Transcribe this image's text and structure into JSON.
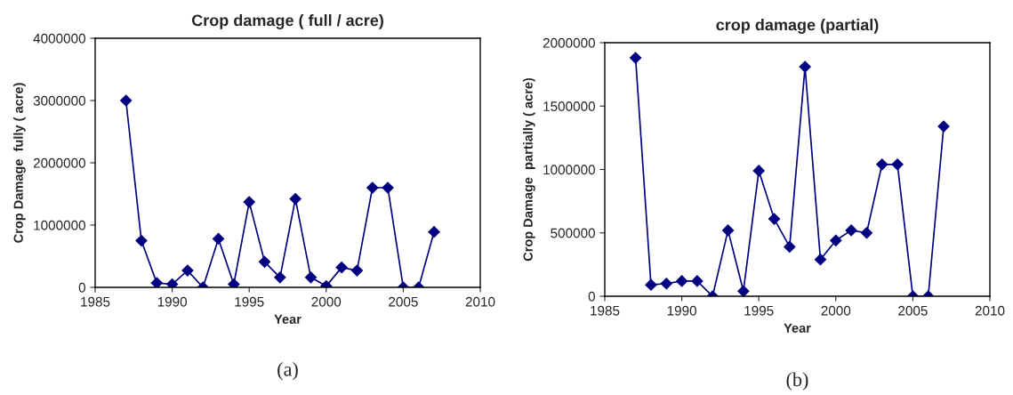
{
  "chart_data": [
    {
      "type": "line",
      "title": "Crop damage ( full / acre)",
      "xlabel": "Year",
      "ylabel": "Crop Damage  fully ( acre)",
      "annotations": [
        "(a)"
      ],
      "x": [
        1987,
        1988,
        1989,
        1990,
        1991,
        1992,
        1993,
        1994,
        1995,
        1996,
        1997,
        1998,
        1999,
        2000,
        2001,
        2002,
        2003,
        2004,
        2005,
        2006,
        2007
      ],
      "series": [
        {
          "color": "#000080",
          "values": [
            3000000,
            750000,
            70000,
            50000,
            270000,
            0,
            780000,
            50000,
            1370000,
            410000,
            160000,
            1420000,
            160000,
            20000,
            320000,
            270000,
            1600000,
            1600000,
            0,
            0,
            890000
          ]
        }
      ],
      "xlim": [
        1985,
        2010
      ],
      "xticks": [
        1985,
        1990,
        1995,
        2000,
        2005,
        2010
      ],
      "ylim": [
        0,
        4000000
      ],
      "yticks": [
        0,
        1000000,
        2000000,
        3000000,
        4000000
      ],
      "marker": "diamond",
      "line_style": "solid",
      "grid": false,
      "legend": false
    },
    {
      "type": "line",
      "title": "crop damage (partial)",
      "xlabel": "Year",
      "ylabel": "Crop Damage  partially ( acre)",
      "annotations": [
        "(b)"
      ],
      "x": [
        1987,
        1988,
        1989,
        1990,
        1991,
        1992,
        1993,
        1994,
        1995,
        1996,
        1997,
        1998,
        1999,
        2000,
        2001,
        2002,
        2003,
        2004,
        2005,
        2006,
        2007
      ],
      "series": [
        {
          "color": "#000080",
          "values": [
            1880000,
            90000,
            100000,
            120000,
            120000,
            0,
            520000,
            40000,
            990000,
            610000,
            390000,
            1810000,
            290000,
            440000,
            520000,
            500000,
            1040000,
            1040000,
            0,
            0,
            1340000
          ]
        }
      ],
      "xlim": [
        1985,
        2010
      ],
      "xticks": [
        1985,
        1990,
        1995,
        2000,
        2005,
        2010
      ],
      "ylim": [
        0,
        2000000
      ],
      "yticks": [
        0,
        500000,
        1000000,
        1500000,
        2000000
      ],
      "marker": "diamond",
      "line_style": "solid",
      "grid": false,
      "legend": false
    }
  ]
}
